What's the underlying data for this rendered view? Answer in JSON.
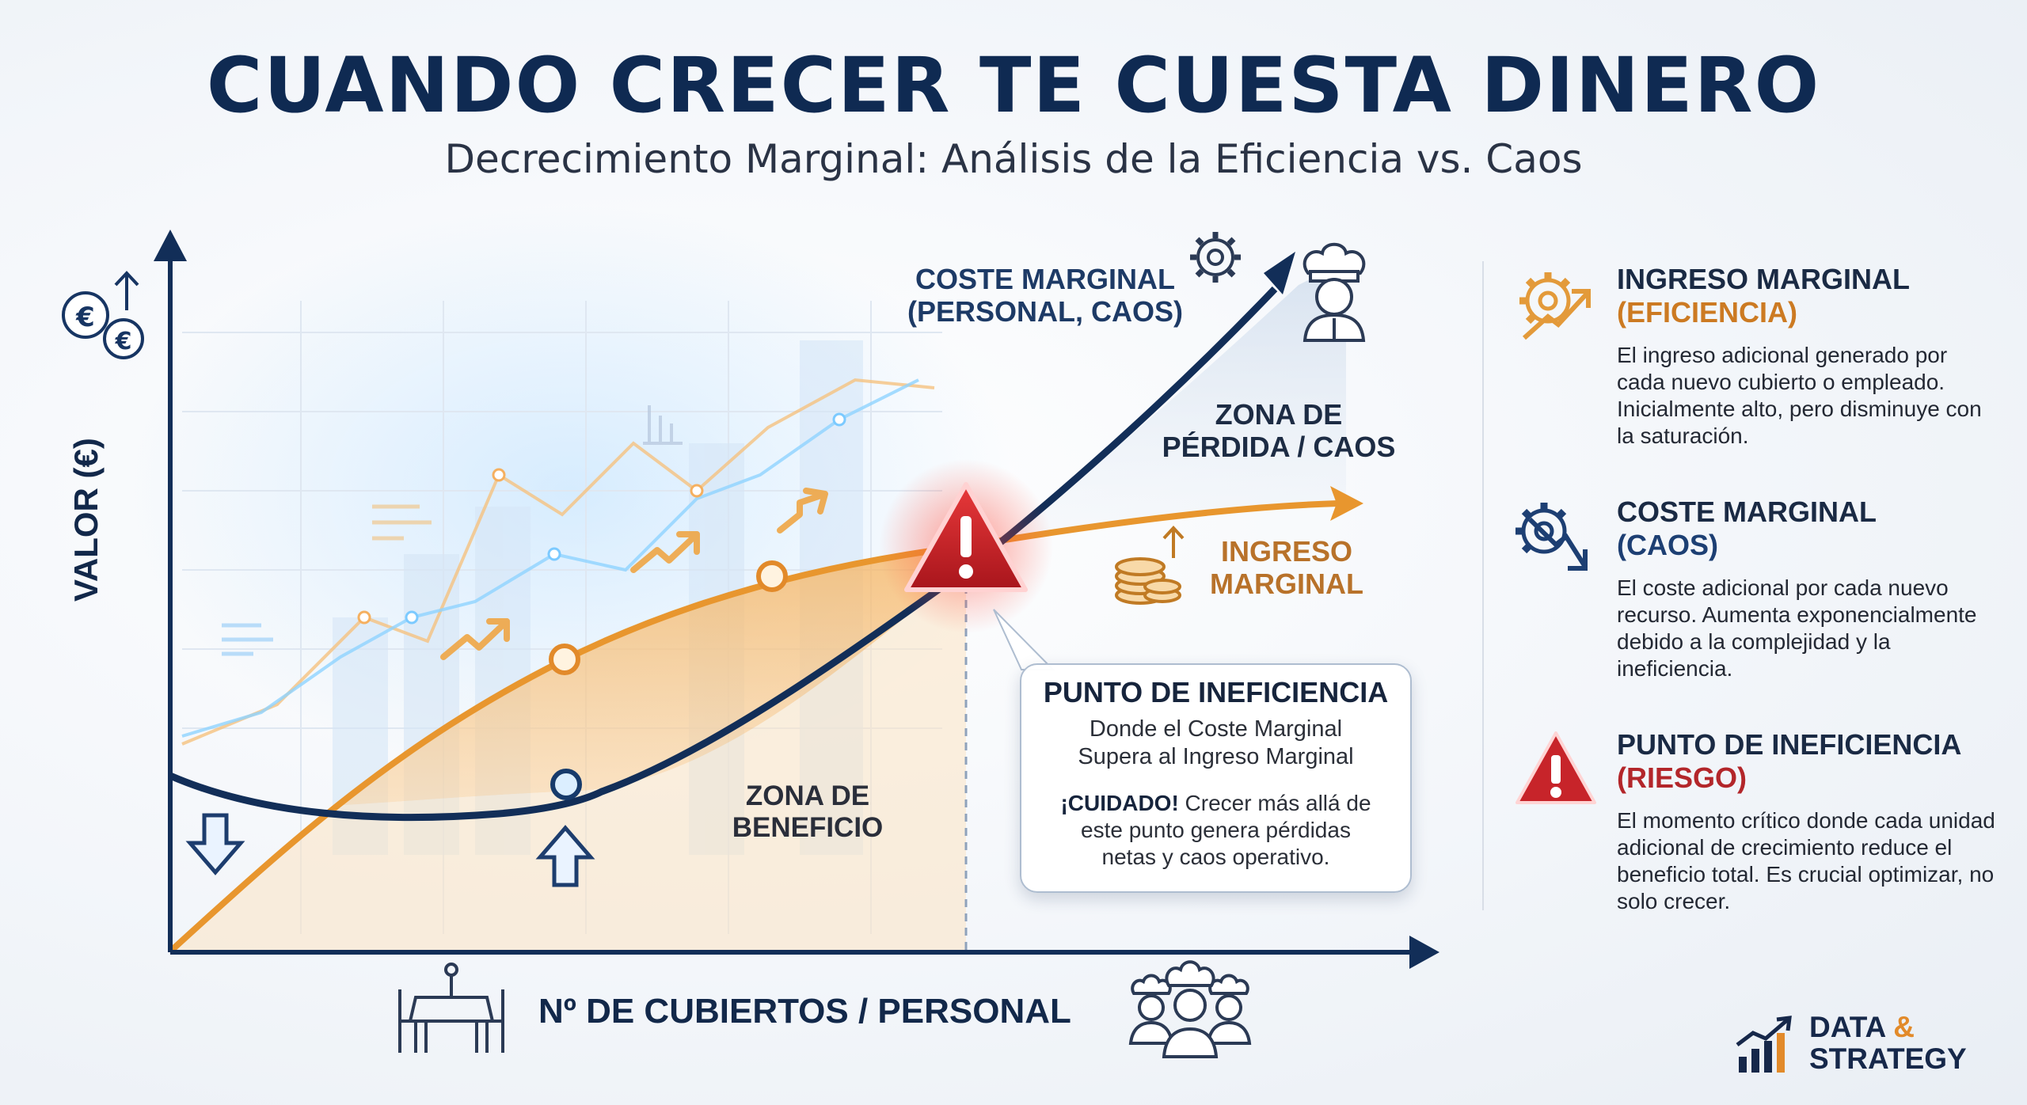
{
  "title": "CUANDO CRECER TE CUESTA DINERO",
  "subtitle": "Decrecimiento Marginal: Análisis de la Eficiencia vs. Caos",
  "axes": {
    "x_label": "Nº DE CUBIERTOS / PERSONAL",
    "y_label": "VALOR (€)"
  },
  "chart_labels": {
    "coste_marginal_line1": "COSTE MARGINAL",
    "coste_marginal_line2": "(PERSONAL, CAOS)",
    "zona_perdida_line1": "ZONA DE",
    "zona_perdida_line2": "PÉRDIDA / CAOS",
    "ingreso_marginal_line1": "INGRESO",
    "ingreso_marginal_line2": "MARGINAL",
    "zona_beneficio_line1": "ZONA DE",
    "zona_beneficio_line2": "BENEFICIO"
  },
  "callout": {
    "title": "PUNTO DE INEFICIENCIA",
    "subtitle_line1": "Donde el Coste Marginal",
    "subtitle_line2": "Supera al Ingreso Marginal",
    "warning_bold": "¡CUIDADO!",
    "warning_line1": " Crecer más allá de",
    "warning_line2": "este punto genera pérdidas",
    "warning_line3": "netas y caos operativo."
  },
  "legend": [
    {
      "title": "INGRESO MARGINAL",
      "tag": "(EFICIENCIA)",
      "tag_color": "#cc7a22",
      "icon": "gear-growth-arrow-icon",
      "description": "El ingreso adicional generado por cada nuevo cubierto o empleado. Inicialmente alto, pero disminuye con la saturación."
    },
    {
      "title": "COSTE MARGINAL",
      "tag": "(CAOS)",
      "tag_color": "#1d3f73",
      "icon": "gear-falling-arrow-icon",
      "description": "El coste adicional por cada nuevo recurso. Aumenta exponencialmente debido a la complejidad y la ineficiencia."
    },
    {
      "title": "PUNTO DE INEFICIENCIA",
      "tag": "(RIESGO)",
      "tag_color": "#b3262a",
      "icon": "warning-triangle-icon",
      "description": "El momento crítico donde cada unidad adicional de crecimiento reduce el beneficio total. Es crucial optimizar, no solo crecer."
    }
  ],
  "logo": {
    "line1": "DATA &",
    "line2": "STRATEGY"
  },
  "colors": {
    "ingreso": "#e8962e",
    "coste": "#16325e",
    "riesgo": "#d8232a",
    "title": "#0f2a52"
  }
}
